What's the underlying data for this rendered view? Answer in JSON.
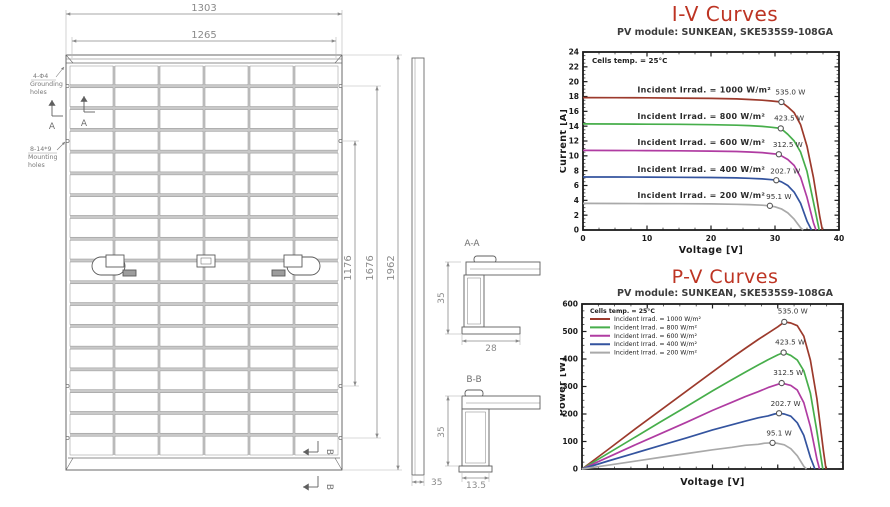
{
  "colors": {
    "title_red": "#bd3423",
    "axis_ink": "#1c1c1c",
    "drawing_line": "#6a6a6a",
    "dim_text": "#8a8a8a",
    "cell_gap": "#c9c9c9",
    "series": [
      "#9c3a2c",
      "#47ae4b",
      "#b03ca2",
      "#34549f",
      "#a9a9a9"
    ]
  },
  "drawing": {
    "grid": {
      "cols": 6,
      "rows": 18
    },
    "dims": {
      "width_outer": "1303",
      "width_inner": "1265",
      "height_inner": "1176",
      "height_mid": "1676",
      "height_outer": "1962",
      "aa_height": "35",
      "aa_width": "28",
      "bb_height": "35",
      "bb_width": "13.5",
      "side_thickness": "35"
    },
    "labels": {
      "grounding_line1": "4-Φ4",
      "grounding_line2": "Grounding",
      "grounding_line3": "holes",
      "mounting_line1": "8-14*9",
      "mounting_line2": "Mounting",
      "mounting_line3": "holes",
      "section_a": "A",
      "section_b": "B",
      "section_aa": "A-A",
      "section_bb": "B-B"
    }
  },
  "chart_data": [
    {
      "id": "iv",
      "type": "line",
      "title": "I-V Curves",
      "subtitle": "PV module: SUNKEAN, SKE535S9-108GA",
      "xlabel": "Voltage [V]",
      "ylabel": "Current [A]",
      "xlim": [
        0,
        40
      ],
      "ylim": [
        0,
        24
      ],
      "xticks": [
        0,
        10,
        20,
        30,
        40
      ],
      "yticks": [
        0,
        2,
        4,
        6,
        8,
        10,
        12,
        14,
        16,
        18,
        20,
        22,
        24
      ],
      "x_minor_step": 2.5,
      "y_minor_step": 0.5,
      "show_x_tick_labels": true,
      "annotation": "Cells temp. = 25°C",
      "legend": false,
      "series": [
        {
          "name": "Incident Irrad. = 1000 W/m²",
          "color": "#9c3a2c",
          "points": [
            [
              0,
              17.85
            ],
            [
              5,
              17.84
            ],
            [
              10,
              17.82
            ],
            [
              15,
              17.79
            ],
            [
              20,
              17.74
            ],
            [
              24,
              17.67
            ],
            [
              26,
              17.6
            ],
            [
              28,
              17.5
            ],
            [
              29.5,
              17.4
            ],
            [
              31,
              17.26
            ],
            [
              32,
              16.6
            ],
            [
              33,
              15.8
            ],
            [
              34,
              14.2
            ],
            [
              35,
              11.3
            ],
            [
              36,
              7.1
            ],
            [
              37,
              1.8
            ],
            [
              37.4,
              0
            ]
          ],
          "curve_label_pos": [
            8.5,
            18.55
          ],
          "mpp": {
            "x": 31.0,
            "y": 17.26,
            "label": "535.0 W",
            "label_pos": [
              32.4,
              18.3
            ]
          }
        },
        {
          "name": "Incident Irrad. = 800 W/m²",
          "color": "#47ae4b",
          "points": [
            [
              0,
              14.3
            ],
            [
              5,
              14.29
            ],
            [
              10,
              14.27
            ],
            [
              15,
              14.25
            ],
            [
              20,
              14.2
            ],
            [
              24,
              14.13
            ],
            [
              26,
              14.07
            ],
            [
              28,
              13.97
            ],
            [
              29.5,
              13.85
            ],
            [
              30.9,
              13.7
            ],
            [
              32,
              12.9
            ],
            [
              33,
              12.0
            ],
            [
              34,
              10.5
            ],
            [
              35,
              7.9
            ],
            [
              36,
              3.8
            ],
            [
              36.9,
              0
            ]
          ],
          "curve_label_pos": [
            8.5,
            15.0
          ],
          "mpp": {
            "x": 30.9,
            "y": 13.7,
            "label": "423.5 W",
            "label_pos": [
              32.2,
              14.75
            ]
          }
        },
        {
          "name": "Incident Irrad. = 600 W/m²",
          "color": "#b03ca2",
          "points": [
            [
              0,
              10.73
            ],
            [
              5,
              10.72
            ],
            [
              10,
              10.71
            ],
            [
              15,
              10.68
            ],
            [
              20,
              10.64
            ],
            [
              24,
              10.58
            ],
            [
              26,
              10.52
            ],
            [
              28,
              10.43
            ],
            [
              29.5,
              10.3
            ],
            [
              30.6,
              10.21
            ],
            [
              32,
              9.5
            ],
            [
              33,
              8.7
            ],
            [
              34,
              7.1
            ],
            [
              35,
              4.4
            ],
            [
              36,
              1.0
            ],
            [
              36.4,
              0
            ]
          ],
          "curve_label_pos": [
            8.5,
            11.45
          ],
          "mpp": {
            "x": 30.6,
            "y": 10.21,
            "label": "312.5 W",
            "label_pos": [
              32.0,
              11.2
            ]
          }
        },
        {
          "name": "Incident Irrad. = 400 W/m²",
          "color": "#34549f",
          "points": [
            [
              0,
              7.15
            ],
            [
              5,
              7.14
            ],
            [
              10,
              7.13
            ],
            [
              15,
              7.11
            ],
            [
              20,
              7.08
            ],
            [
              24,
              7.02
            ],
            [
              26,
              6.97
            ],
            [
              28,
              6.89
            ],
            [
              29.5,
              6.78
            ],
            [
              30.2,
              6.71
            ],
            [
              31,
              6.5
            ],
            [
              32,
              6.0
            ],
            [
              33,
              5.1
            ],
            [
              34,
              3.6
            ],
            [
              35,
              1.2
            ],
            [
              35.7,
              0
            ]
          ],
          "curve_label_pos": [
            8.5,
            7.85
          ],
          "mpp": {
            "x": 30.2,
            "y": 6.71,
            "label": "202.7 W",
            "label_pos": [
              31.6,
              7.6
            ]
          }
        },
        {
          "name": "Incident Irrad. = 200 W/m²",
          "color": "#a9a9a9",
          "points": [
            [
              0,
              3.58
            ],
            [
              5,
              3.57
            ],
            [
              10,
              3.56
            ],
            [
              15,
              3.55
            ],
            [
              20,
              3.52
            ],
            [
              24,
              3.47
            ],
            [
              26,
              3.43
            ],
            [
              28,
              3.35
            ],
            [
              29.2,
              3.26
            ],
            [
              30,
              3.13
            ],
            [
              31,
              2.85
            ],
            [
              32,
              2.3
            ],
            [
              33,
              1.45
            ],
            [
              34,
              0.3
            ],
            [
              34.4,
              0
            ]
          ],
          "curve_label_pos": [
            8.5,
            4.3
          ],
          "mpp": {
            "x": 29.2,
            "y": 3.26,
            "label": "95.1 W",
            "label_pos": [
              30.6,
              4.2
            ]
          }
        }
      ]
    },
    {
      "id": "pv",
      "type": "line",
      "title": "P-V Curves",
      "subtitle": "PV module: SUNKEAN, SKE535S9-108GA",
      "xlabel": "Voltage [V]",
      "ylabel": "Power [W]",
      "xlim": [
        0,
        40
      ],
      "ylim": [
        0,
        600
      ],
      "xticks": [
        0,
        10,
        20,
        30,
        40
      ],
      "yticks": [
        0,
        100,
        200,
        300,
        400,
        500,
        600
      ],
      "x_minor_step": 2.5,
      "y_minor_step": 25,
      "show_x_tick_labels": false,
      "annotation": "Cells temp. = 25°C",
      "legend": true,
      "series": [
        {
          "name": "Incident Irrad. = 1000 W/m²",
          "color": "#9c3a2c",
          "points": [
            [
              0,
              0
            ],
            [
              4,
              71
            ],
            [
              8,
              143
            ],
            [
              12,
              213
            ],
            [
              16,
              283
            ],
            [
              20,
              353
            ],
            [
              23,
              405
            ],
            [
              25,
              438
            ],
            [
              27,
              471
            ],
            [
              28.5,
              494
            ],
            [
              30,
              517
            ],
            [
              31,
              535
            ],
            [
              32,
              531
            ],
            [
              33,
              521
            ],
            [
              34,
              483
            ],
            [
              35,
              396
            ],
            [
              36,
              256
            ],
            [
              37,
              67
            ],
            [
              37.4,
              0
            ]
          ],
          "mpp": {
            "x": 31.0,
            "y": 535,
            "label": "535.0 W",
            "label_pos": [
              32.3,
              566
            ]
          }
        },
        {
          "name": "Incident Irrad. = 800 W/m²",
          "color": "#47ae4b",
          "points": [
            [
              0,
              0
            ],
            [
              4,
              57
            ],
            [
              8,
              114
            ],
            [
              12,
              171
            ],
            [
              16,
              227
            ],
            [
              20,
              284
            ],
            [
              23,
              325
            ],
            [
              25,
              352
            ],
            [
              27,
              378
            ],
            [
              28.5,
              397
            ],
            [
              30,
              415
            ],
            [
              30.9,
              423.5
            ],
            [
              32,
              413
            ],
            [
              33,
              396
            ],
            [
              34,
              357
            ],
            [
              35,
              276
            ],
            [
              36,
              137
            ],
            [
              36.9,
              0
            ]
          ],
          "mpp": {
            "x": 30.9,
            "y": 423.5,
            "label": "423.5 W",
            "label_pos": [
              31.9,
              452
            ]
          }
        },
        {
          "name": "Incident Irrad. = 600 W/m²",
          "color": "#b03ca2",
          "points": [
            [
              0,
              0
            ],
            [
              4,
              43
            ],
            [
              8,
              86
            ],
            [
              12,
              128
            ],
            [
              16,
              170
            ],
            [
              20,
              213
            ],
            [
              23,
              243
            ],
            [
              25,
              263
            ],
            [
              27,
              281
            ],
            [
              28.5,
              296
            ],
            [
              30,
              308
            ],
            [
              30.6,
              312.5
            ],
            [
              32,
              304
            ],
            [
              33,
              287
            ],
            [
              34,
              241
            ],
            [
              35,
              154
            ],
            [
              36,
              36
            ],
            [
              36.4,
              0
            ]
          ],
          "mpp": {
            "x": 30.6,
            "y": 312.5,
            "label": "312.5 W",
            "label_pos": [
              31.6,
              341
            ]
          }
        },
        {
          "name": "Incident Irrad. = 400 W/m²",
          "color": "#34549f",
          "points": [
            [
              0,
              0
            ],
            [
              4,
              29
            ],
            [
              8,
              57
            ],
            [
              12,
              85
            ],
            [
              16,
              113
            ],
            [
              20,
              142
            ],
            [
              23,
              161
            ],
            [
              25,
              174
            ],
            [
              27,
              186
            ],
            [
              28.5,
              193
            ],
            [
              29.5,
              200
            ],
            [
              30.2,
              202.7
            ],
            [
              31,
              200
            ],
            [
              32,
              192
            ],
            [
              33,
              168
            ],
            [
              34,
              122
            ],
            [
              35,
              42
            ],
            [
              35.7,
              0
            ]
          ],
          "mpp": {
            "x": 30.2,
            "y": 202.7,
            "label": "202.7 W",
            "label_pos": [
              31.2,
              230
            ]
          }
        },
        {
          "name": "Incident Irrad. = 200 W/m²",
          "color": "#a9a9a9",
          "points": [
            [
              0,
              0
            ],
            [
              4,
              14
            ],
            [
              8,
              28
            ],
            [
              12,
              42
            ],
            [
              16,
              56
            ],
            [
              20,
              70
            ],
            [
              23,
              79
            ],
            [
              25,
              86
            ],
            [
              27,
              90
            ],
            [
              28,
              94
            ],
            [
              29.2,
              95.1
            ],
            [
              30,
              93
            ],
            [
              31,
              88
            ],
            [
              32,
              74
            ],
            [
              33,
              48
            ],
            [
              34,
              10
            ],
            [
              34.4,
              0
            ]
          ],
          "mpp": {
            "x": 29.2,
            "y": 95.1,
            "label": "95.1 W",
            "label_pos": [
              30.2,
              121
            ]
          }
        }
      ]
    }
  ]
}
